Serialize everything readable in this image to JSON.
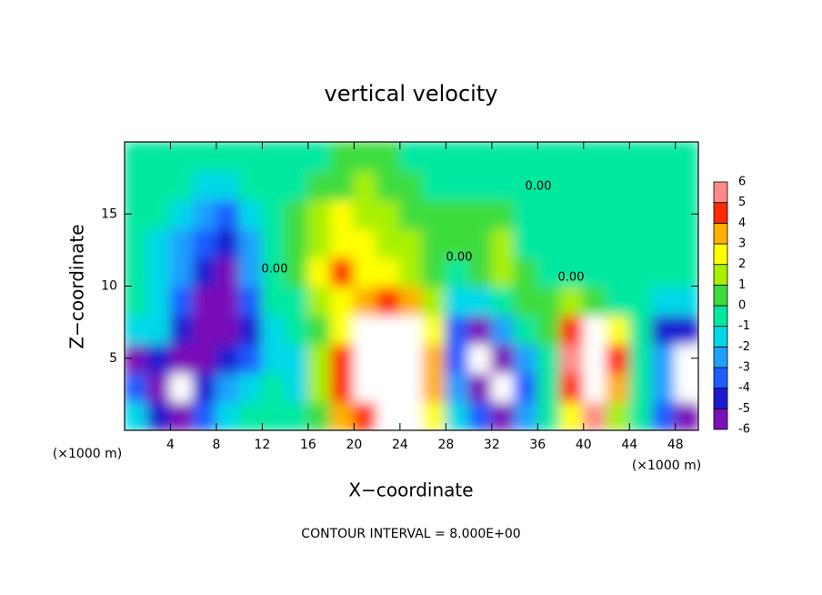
{
  "chart_data": {
    "type": "heatmap",
    "title": "vertical velocity",
    "x_label": "X−coordinate",
    "y_label": "Z−coordinate",
    "x_unit_labels": [
      "(×1000 m)",
      "(×1000 m)"
    ],
    "footer": "CONTOUR INTERVAL = 8.000E+00",
    "contour_labels": [
      "0.00",
      "0.00",
      "0.00",
      "0.00"
    ],
    "x": [
      1,
      3,
      5,
      7,
      9,
      11,
      13,
      15,
      17,
      19,
      21,
      23,
      25,
      27,
      29,
      31,
      33,
      35,
      37,
      39,
      41,
      43,
      45,
      47,
      49
    ],
    "y": [
      1,
      3,
      5,
      7,
      9,
      11,
      13,
      15,
      17,
      19
    ],
    "z": [
      [
        -1,
        -4,
        -5,
        -3,
        -1,
        0,
        0,
        0,
        1,
        4,
        5,
        7,
        7,
        3,
        -1,
        -3,
        -5,
        -2,
        0,
        3,
        6,
        2,
        0,
        -3,
        -6
      ],
      [
        -3,
        -6,
        -8,
        -4,
        -2,
        -1,
        0,
        -1,
        2,
        5,
        7,
        9,
        9,
        4,
        -2,
        -6,
        -8,
        -3,
        0,
        5,
        9,
        4,
        0,
        -2,
        -7
      ],
      [
        -6,
        -4,
        -6,
        -5,
        -4,
        -3,
        -1,
        -1,
        2,
        5,
        8,
        10,
        9,
        4,
        -3,
        -7,
        -5,
        -2,
        0,
        6,
        9,
        5,
        0,
        -2,
        -7
      ],
      [
        -1,
        -1,
        -4,
        -5,
        -6,
        -4,
        -1,
        0,
        1,
        3,
        7,
        9,
        7,
        3,
        -3,
        -5,
        -2,
        0,
        1,
        5,
        7,
        3,
        0,
        -4,
        -4
      ],
      [
        0,
        -1,
        -3,
        -5,
        -5,
        -3,
        0,
        0,
        2,
        3,
        4,
        5,
        4,
        2,
        -1,
        -1,
        0,
        1,
        1,
        2,
        1,
        0,
        0,
        -1,
        -1
      ],
      [
        0,
        -1,
        -2,
        -4,
        -5,
        -2,
        0,
        1,
        3,
        5,
        3,
        3,
        2,
        1,
        0,
        1,
        2,
        1,
        0,
        0,
        0,
        0,
        0,
        0,
        0
      ],
      [
        0,
        -1,
        -2,
        -3,
        -4,
        -2,
        0,
        1,
        2,
        3,
        3,
        2,
        2,
        1,
        1,
        1,
        2,
        0,
        0,
        0,
        0,
        0,
        0,
        0,
        0
      ],
      [
        0,
        0,
        -1,
        -2,
        -3,
        -1,
        0,
        1,
        2,
        3,
        2,
        2,
        1,
        1,
        1,
        1,
        1,
        0,
        0,
        0,
        0,
        0,
        0,
        0,
        0
      ],
      [
        0,
        0,
        0,
        -1,
        -1,
        0,
        0,
        0,
        1,
        1,
        2,
        1,
        1,
        0,
        0,
        0,
        0,
        0,
        0,
        0,
        0,
        0,
        0,
        0,
        0
      ],
      [
        0,
        0,
        0,
        0,
        0,
        0,
        0,
        0,
        0,
        1,
        1,
        1,
        0,
        0,
        0,
        0,
        0,
        0,
        0,
        0,
        0,
        0,
        0,
        0,
        0
      ]
    ],
    "xlim": [
      0,
      50
    ],
    "ylim": [
      0,
      20
    ],
    "xticks": [
      4,
      8,
      12,
      16,
      20,
      24,
      28,
      32,
      36,
      40,
      44,
      48
    ],
    "yticks": [
      5,
      10,
      15
    ],
    "colorbar_ticks": [
      -6,
      -5,
      -4,
      -3,
      -2,
      -1,
      0,
      1,
      2,
      3,
      4,
      5,
      6
    ],
    "colorbar_colors": [
      "#7a10b8",
      "#1a1ad0",
      "#1e5cff",
      "#1ea0ff",
      "#00d8e8",
      "#00e8a0",
      "#3cdc3c",
      "#a8f000",
      "#ffff00",
      "#ffb000",
      "#ff2a00",
      "#ff8a8a"
    ],
    "out_of_range_color": "#ffffff"
  }
}
